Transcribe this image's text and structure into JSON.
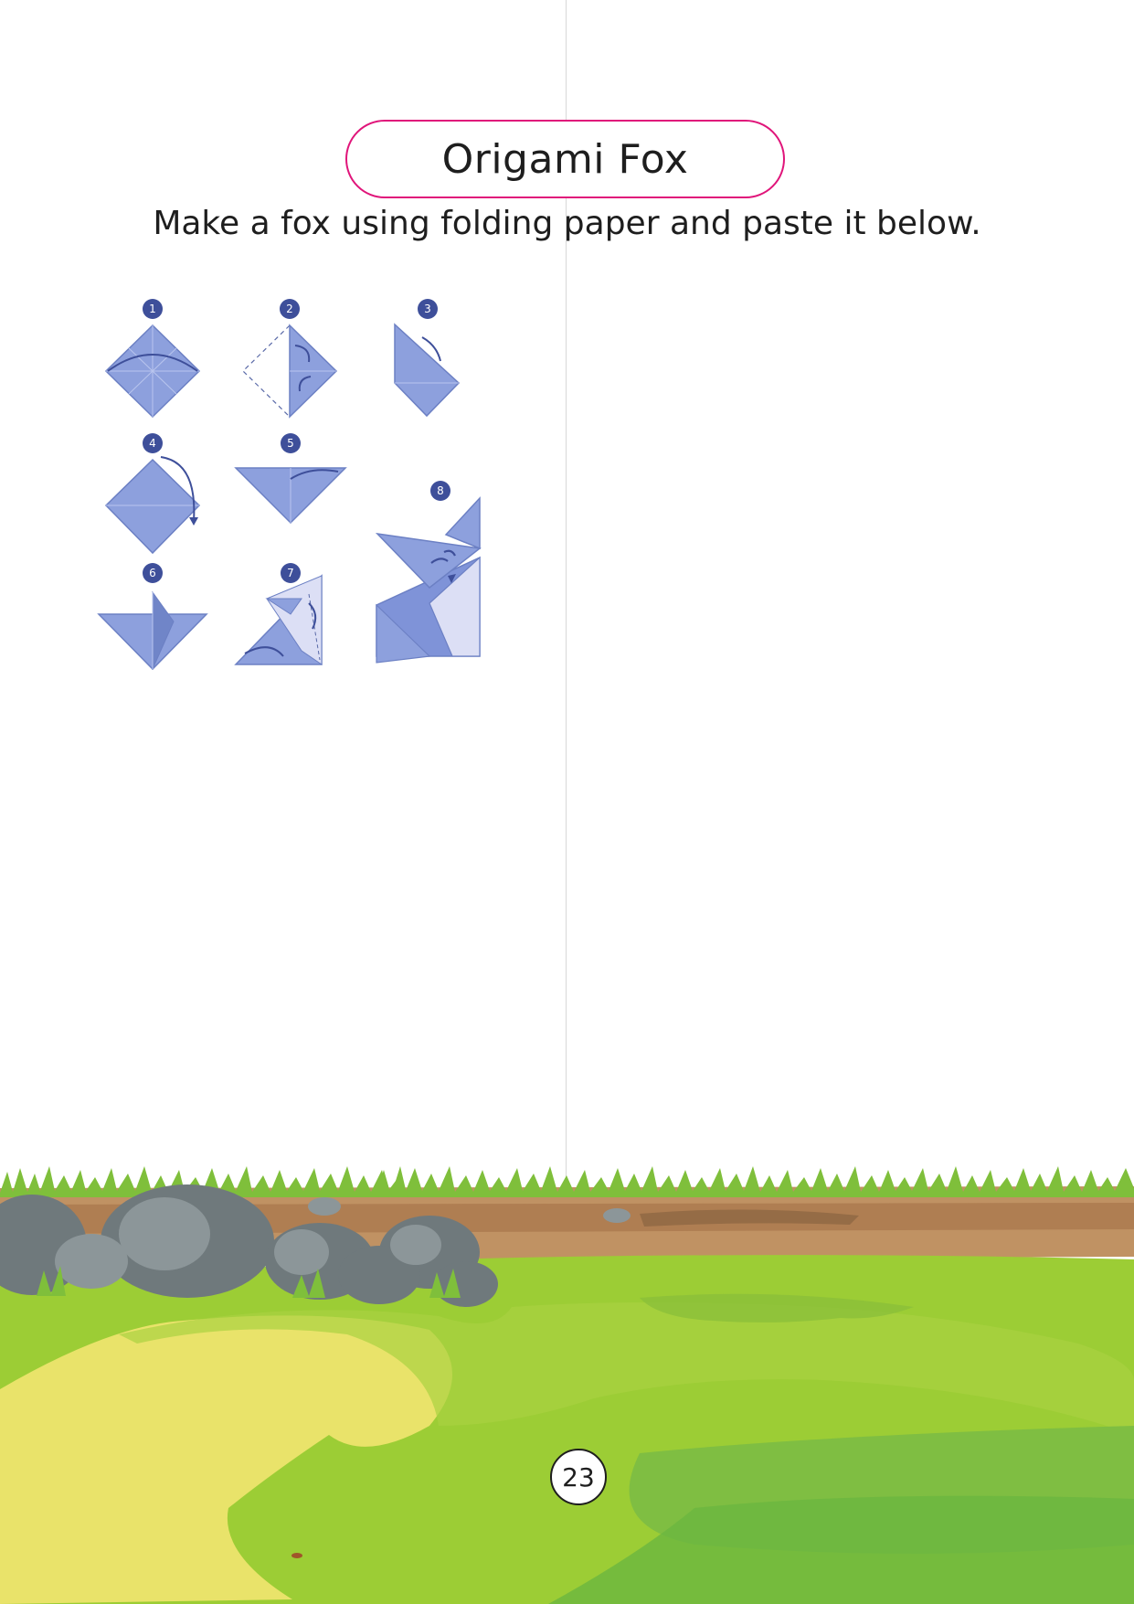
{
  "title": "Origami Fox",
  "instruction": "Make a fox using folding paper and paste it below.",
  "steps": [
    "1",
    "2",
    "3",
    "4",
    "5",
    "6",
    "7",
    "8"
  ],
  "page_number": "23",
  "colors": {
    "accent": "#e0157a",
    "paper": "#8da0dd",
    "paper_dark": "#7085c8",
    "paper_light": "#dcdff5",
    "badge": "#3e4f9a",
    "grass": "#9acd32",
    "grass_light": "#ede36c",
    "soil": "#b88a5e",
    "rock": "#707a7d"
  }
}
